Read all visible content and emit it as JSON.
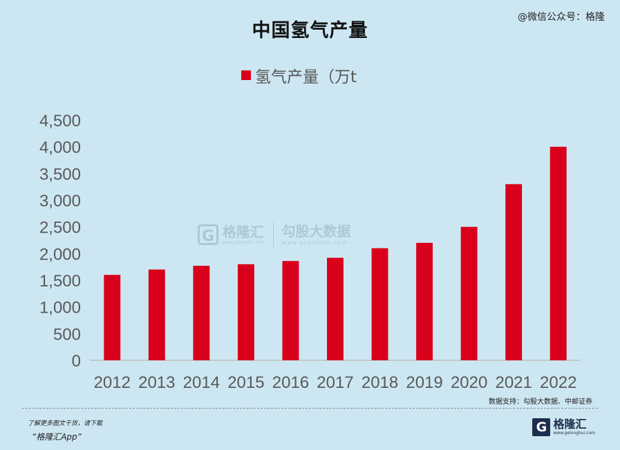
{
  "watermark_top": "@微信公众号：格隆",
  "chart_data": {
    "type": "bar",
    "title": "中国氢气产量",
    "categories": [
      "2012",
      "2013",
      "2014",
      "2015",
      "2016",
      "2017",
      "2018",
      "2019",
      "2020",
      "2021",
      "2022"
    ],
    "series": [
      {
        "name": "氢气产量（万t",
        "color": "#d9001b",
        "values": [
          1600,
          1700,
          1770,
          1800,
          1860,
          1920,
          2100,
          2200,
          2500,
          3300,
          4000
        ]
      }
    ],
    "y_ticks": [
      "0",
      "500",
      "1,000",
      "1,500",
      "2,000",
      "2,500",
      "3,000",
      "3,500",
      "4,000",
      "4,500"
    ],
    "ylim": [
      0,
      4500
    ],
    "grid": false,
    "legend_position": "top"
  },
  "watermark_center": {
    "brand": "格隆汇",
    "brand_url": "www.gelonghui.com",
    "partner": "勾股大数据",
    "partner_url": "www.gogudata.com"
  },
  "source": "数据支持：勾股大数据、中邮证券",
  "footer": {
    "line1": "了解更多图文干货，请下载",
    "line2": "“格隆汇App”",
    "brand_name": "格隆汇",
    "brand_url": "www.gelonghui.com",
    "brand_mark": "G"
  },
  "colors": {
    "background": "#cde7f2",
    "bar": "#d9001b",
    "axis": "#bfbfbf"
  }
}
